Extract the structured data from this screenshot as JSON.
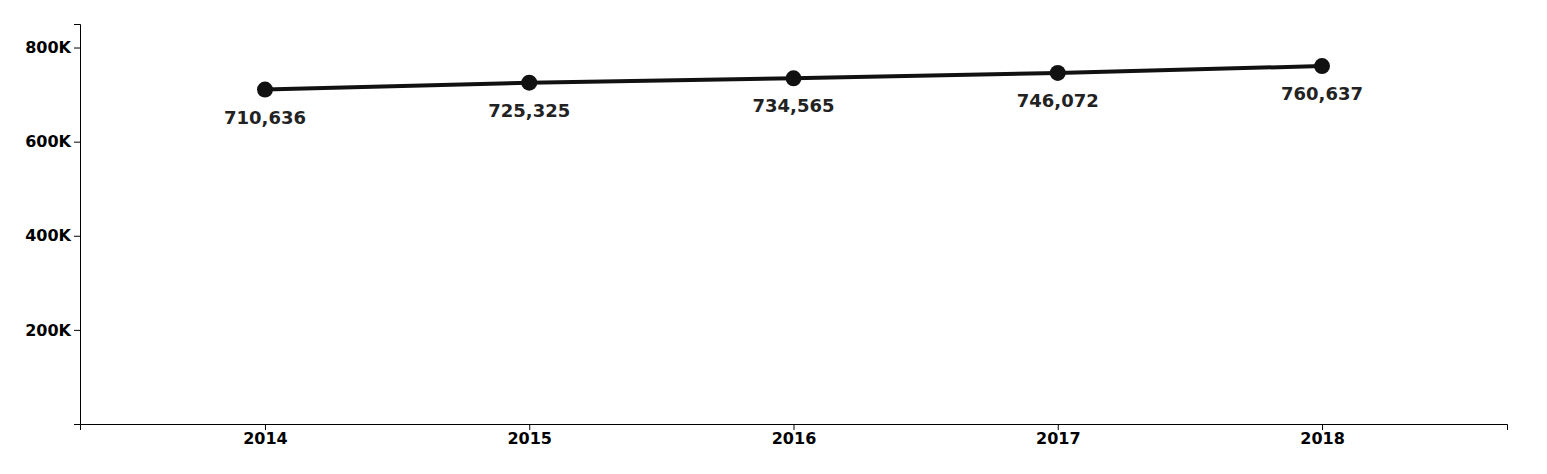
{
  "chart_data": {
    "type": "line",
    "x": [
      2014,
      2015,
      2016,
      2017,
      2018
    ],
    "values": [
      710636,
      725325,
      734565,
      746072,
      760637
    ],
    "value_labels": [
      "710,636",
      "725,325",
      "734,565",
      "746,072",
      "760,637"
    ],
    "data_labels": true,
    "color": "#111111",
    "marker": "circle",
    "xlim": [
      2013.3,
      2018.7
    ],
    "xticks": [
      2014,
      2015,
      2016,
      2017,
      2018
    ],
    "ylim": [
      0,
      850000
    ],
    "yticks": [
      {
        "value": 200000,
        "label": "200K"
      },
      {
        "value": 400000,
        "label": "400K"
      },
      {
        "value": 600000,
        "label": "600K"
      },
      {
        "value": 800000,
        "label": "800K"
      }
    ],
    "grid": false
  }
}
